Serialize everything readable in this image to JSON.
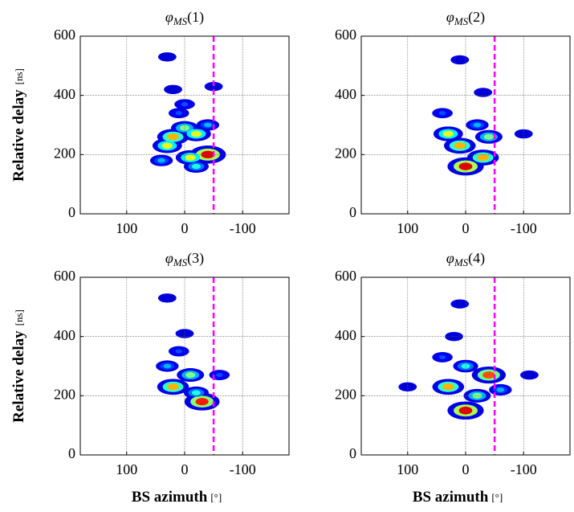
{
  "chart_data": [
    {
      "type": "scatter",
      "title": [
        "φ",
        "MS",
        "(1)"
      ],
      "ylabel": "Relative delay",
      "yunit": "[ns]",
      "xlim": [
        180,
        -180
      ],
      "ylim": [
        0,
        600
      ],
      "xticks": [
        100,
        0,
        -100
      ],
      "yticks": [
        0,
        200,
        400,
        600
      ],
      "grid": true,
      "vline": -50,
      "vline_color": "#ff00ff",
      "x": [
        -40,
        -10,
        20,
        0,
        30,
        -20,
        40,
        10,
        -40,
        20,
        -50,
        30,
        -20,
        0
      ],
      "y": [
        200,
        190,
        260,
        290,
        230,
        270,
        180,
        340,
        300,
        420,
        430,
        530,
        160,
        370
      ],
      "level": [
        0.9,
        0.6,
        0.7,
        0.5,
        0.6,
        0.6,
        0.3,
        0.2,
        0.3,
        0.1,
        0.1,
        0.1,
        0.4,
        0.2
      ]
    },
    {
      "type": "scatter",
      "title": [
        "φ",
        "MS",
        "(2)"
      ],
      "xlim": [
        180,
        -180
      ],
      "ylim": [
        0,
        600
      ],
      "xticks": [
        100,
        0,
        -100
      ],
      "yticks": [
        0,
        200,
        400,
        600
      ],
      "grid": true,
      "vline": -50,
      "vline_color": "#ff00ff",
      "x": [
        0,
        -30,
        30,
        10,
        -40,
        -20,
        40,
        -30,
        10,
        -100
      ],
      "y": [
        160,
        190,
        270,
        230,
        260,
        300,
        340,
        410,
        520,
        270
      ],
      "level": [
        0.9,
        0.7,
        0.6,
        0.7,
        0.5,
        0.3,
        0.2,
        0.1,
        0.1,
        0.1
      ]
    },
    {
      "type": "scatter",
      "title": [
        "φ",
        "MS",
        "(3)"
      ],
      "ylabel": "Relative delay",
      "yunit": "[ns]",
      "xlabel": "BS azimuth",
      "xunit": "[°]",
      "xlim": [
        180,
        -180
      ],
      "ylim": [
        0,
        600
      ],
      "xticks": [
        100,
        0,
        -100
      ],
      "yticks": [
        0,
        200,
        400,
        600
      ],
      "grid": true,
      "vline": -50,
      "vline_color": "#ff00ff",
      "x": [
        -30,
        20,
        -10,
        30,
        -60,
        10,
        0,
        30,
        -20
      ],
      "y": [
        180,
        230,
        270,
        300,
        270,
        350,
        410,
        530,
        210
      ],
      "level": [
        0.85,
        0.7,
        0.5,
        0.3,
        0.2,
        0.2,
        0.1,
        0.1,
        0.4
      ]
    },
    {
      "type": "scatter",
      "title": [
        "φ",
        "MS",
        "(4)"
      ],
      "xlabel": "BS azimuth",
      "xunit": "[°]",
      "xlim": [
        180,
        -180
      ],
      "ylim": [
        0,
        600
      ],
      "xticks": [
        100,
        0,
        -100
      ],
      "yticks": [
        0,
        200,
        400,
        600
      ],
      "grid": true,
      "vline": -50,
      "vline_color": "#ff00ff",
      "x": [
        0,
        -40,
        30,
        -20,
        0,
        40,
        -60,
        20,
        10,
        100,
        -110
      ],
      "y": [
        150,
        270,
        230,
        200,
        300,
        330,
        220,
        400,
        510,
        230,
        270
      ],
      "level": [
        0.9,
        0.8,
        0.7,
        0.5,
        0.4,
        0.2,
        0.3,
        0.1,
        0.1,
        0.1,
        0.1
      ]
    }
  ]
}
